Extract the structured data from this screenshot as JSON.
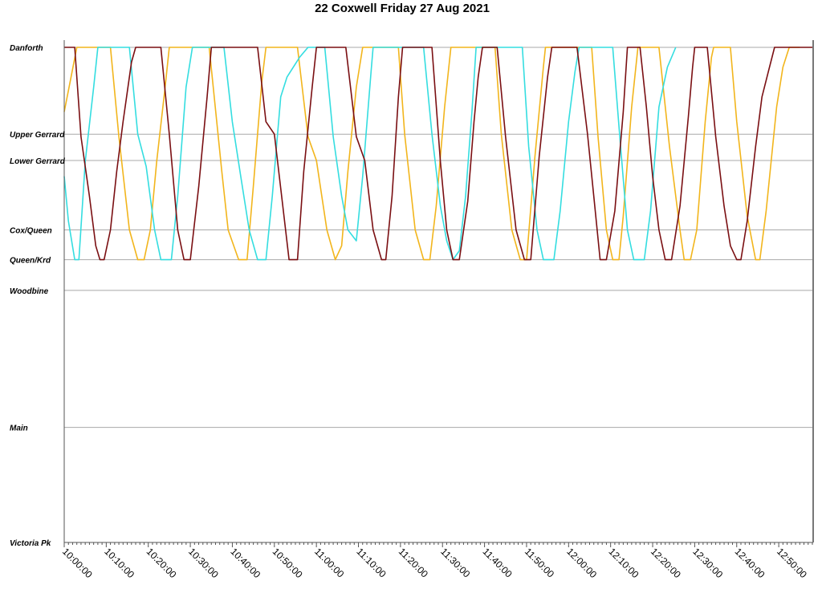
{
  "chart_data": {
    "type": "line",
    "title": "22 Coxwell Friday 27 Aug 2021",
    "xlabel": "",
    "ylabel": "",
    "grid": true,
    "legend": "none",
    "xlim": [
      "10:00:00",
      "12:58:00"
    ],
    "ylim": [
      "Victoria Pk",
      "Danforth"
    ],
    "stops": [
      {
        "name": "Danforth",
        "distance_km": 0.0
      },
      {
        "name": "Upper Gerrard",
        "distance_km": 1.75
      },
      {
        "name": "Lower Gerrard",
        "distance_km": 2.28
      },
      {
        "name": "Cox/Queen",
        "distance_km": 3.68
      },
      {
        "name": "Queen/Krd",
        "distance_km": 4.28
      },
      {
        "name": "Woodbine",
        "distance_km": 4.9
      },
      {
        "name": "Main",
        "distance_km": 7.66
      },
      {
        "name": "Victoria Pk",
        "distance_km": 9.98
      }
    ],
    "x_ticks": [
      "10:00:00",
      "10:10:00",
      "10:20:00",
      "10:30:00",
      "10:40:00",
      "10:50:00",
      "11:00:00",
      "11:10:00",
      "11:20:00",
      "11:30:00",
      "11:40:00",
      "11:50:00",
      "12:00:00",
      "12:10:00",
      "12:20:00",
      "12:30:00",
      "12:40:00",
      "12:50:00"
    ],
    "colors": [
      "#f2b51c",
      "#34dde0",
      "#7a0f12"
    ],
    "series": [
      {
        "color": "#f2b51c",
        "points": [
          [
            "10:00:00",
            1.3
          ],
          [
            "10:01:30",
            0.65
          ],
          [
            "10:03:00",
            0.0
          ],
          [
            "10:11:00",
            0.0
          ],
          [
            "10:13:00",
            1.8
          ],
          [
            "10:15:30",
            3.68
          ],
          [
            "10:17:30",
            4.28
          ],
          [
            "10:19:00",
            4.28
          ],
          [
            "10:20:30",
            3.68
          ],
          [
            "10:22:00",
            2.3
          ],
          [
            "10:24:00",
            0.8
          ],
          [
            "10:25:00",
            0.0
          ],
          [
            "10:34:30",
            0.0
          ],
          [
            "10:37:30",
            2.5
          ],
          [
            "10:39:00",
            3.68
          ],
          [
            "10:41:30",
            4.28
          ],
          [
            "10:43:30",
            4.28
          ],
          [
            "10:45:00",
            2.8
          ],
          [
            "10:47:00",
            0.7
          ],
          [
            "10:48:00",
            0.0
          ],
          [
            "10:55:30",
            0.0
          ],
          [
            "10:58:00",
            1.8
          ],
          [
            "11:00:00",
            2.28
          ],
          [
            "11:02:30",
            3.68
          ],
          [
            "11:04:30",
            4.28
          ],
          [
            "11:06:00",
            4.0
          ],
          [
            "11:07:30",
            2.5
          ],
          [
            "11:09:30",
            0.8
          ],
          [
            "11:11:00",
            0.0
          ],
          [
            "11:19:30",
            0.0
          ],
          [
            "11:21:00",
            1.75
          ],
          [
            "11:23:30",
            3.68
          ],
          [
            "11:25:30",
            4.28
          ],
          [
            "11:27:00",
            4.28
          ],
          [
            "11:28:30",
            3.2
          ],
          [
            "11:30:30",
            1.2
          ],
          [
            "11:32:00",
            0.0
          ],
          [
            "11:42:30",
            0.0
          ],
          [
            "11:44:00",
            1.75
          ],
          [
            "11:46:30",
            3.68
          ],
          [
            "11:48:30",
            4.28
          ],
          [
            "11:50:00",
            4.28
          ],
          [
            "11:52:00",
            2.2
          ],
          [
            "11:54:00",
            0.4
          ],
          [
            "11:54:30",
            0.0
          ],
          [
            "12:05:30",
            0.0
          ],
          [
            "12:07:00",
            1.8
          ],
          [
            "12:09:00",
            3.68
          ],
          [
            "12:10:30",
            4.28
          ],
          [
            "12:12:00",
            4.28
          ],
          [
            "12:13:00",
            3.4
          ],
          [
            "12:15:00",
            1.2
          ],
          [
            "12:16:30",
            0.0
          ],
          [
            "12:21:30",
            0.0
          ],
          [
            "12:24:00",
            2.0
          ],
          [
            "12:26:30",
            3.68
          ],
          [
            "12:27:30",
            4.28
          ],
          [
            "12:29:00",
            4.28
          ],
          [
            "12:30:30",
            3.68
          ],
          [
            "12:32:30",
            1.5
          ],
          [
            "12:34:00",
            0.2
          ],
          [
            "12:34:30",
            0.0
          ],
          [
            "12:38:30",
            0.0
          ],
          [
            "12:40:00",
            1.5
          ],
          [
            "12:42:30",
            3.4
          ],
          [
            "12:44:30",
            4.28
          ],
          [
            "12:45:30",
            4.28
          ],
          [
            "12:47:00",
            3.3
          ],
          [
            "12:49:30",
            1.2
          ],
          [
            "12:51:00",
            0.4
          ],
          [
            "12:52:30",
            0.0
          ],
          [
            "12:55:00",
            0.0
          ]
        ]
      },
      {
        "color": "#34dde0",
        "points": [
          [
            "10:00:00",
            2.6
          ],
          [
            "10:01:00",
            3.5
          ],
          [
            "10:02:30",
            4.28
          ],
          [
            "10:03:30",
            4.28
          ],
          [
            "10:05:00",
            2.3
          ],
          [
            "10:07:00",
            0.8
          ],
          [
            "10:08:00",
            0.0
          ],
          [
            "10:15:30",
            0.0
          ],
          [
            "10:17:30",
            1.75
          ],
          [
            "10:19:30",
            2.4
          ],
          [
            "10:21:30",
            3.68
          ],
          [
            "10:23:00",
            4.28
          ],
          [
            "10:25:30",
            4.28
          ],
          [
            "10:27:00",
            3.0
          ],
          [
            "10:29:00",
            0.8
          ],
          [
            "10:30:30",
            0.0
          ],
          [
            "10:38:00",
            0.0
          ],
          [
            "10:40:00",
            1.5
          ],
          [
            "10:42:00",
            2.6
          ],
          [
            "10:44:00",
            3.68
          ],
          [
            "10:46:00",
            4.28
          ],
          [
            "10:48:00",
            4.28
          ],
          [
            "10:49:30",
            3.0
          ],
          [
            "10:51:30",
            1.0
          ],
          [
            "10:53:00",
            0.6
          ],
          [
            "10:56:00",
            0.2
          ],
          [
            "10:58:00",
            0.0
          ],
          [
            "11:02:00",
            0.0
          ],
          [
            "11:04:00",
            1.8
          ],
          [
            "11:06:00",
            3.0
          ],
          [
            "11:07:30",
            3.68
          ],
          [
            "11:09:30",
            3.9
          ],
          [
            "11:11:00",
            2.6
          ],
          [
            "11:13:00",
            0.5
          ],
          [
            "11:13:30",
            0.0
          ],
          [
            "11:25:30",
            0.0
          ],
          [
            "11:27:30",
            1.75
          ],
          [
            "11:29:30",
            3.2
          ],
          [
            "11:31:00",
            3.9
          ],
          [
            "11:32:30",
            4.28
          ],
          [
            "11:34:00",
            4.1
          ],
          [
            "11:35:30",
            3.0
          ],
          [
            "11:37:00",
            1.3
          ],
          [
            "11:38:00",
            0.0
          ],
          [
            "11:49:00",
            0.0
          ],
          [
            "11:50:30",
            2.0
          ],
          [
            "11:52:30",
            3.68
          ],
          [
            "11:54:00",
            4.28
          ],
          [
            "11:56:30",
            4.28
          ],
          [
            "11:58:00",
            3.3
          ],
          [
            "12:00:00",
            1.5
          ],
          [
            "12:01:30",
            0.5
          ],
          [
            "12:02:30",
            0.0
          ],
          [
            "12:10:30",
            0.0
          ],
          [
            "12:12:00",
            1.6
          ],
          [
            "12:14:00",
            3.68
          ],
          [
            "12:15:30",
            4.28
          ],
          [
            "12:18:00",
            4.28
          ],
          [
            "12:19:30",
            3.3
          ],
          [
            "12:21:30",
            1.2
          ],
          [
            "12:23:30",
            0.4
          ],
          [
            "12:25:30",
            0.0
          ]
        ]
      },
      {
        "color": "#7a0f12",
        "points": [
          [
            "10:00:00",
            0.0
          ],
          [
            "10:02:30",
            0.0
          ],
          [
            "10:04:00",
            1.8
          ],
          [
            "10:06:00",
            3.0
          ],
          [
            "10:07:30",
            4.0
          ],
          [
            "10:08:30",
            4.28
          ],
          [
            "10:09:30",
            4.28
          ],
          [
            "10:11:00",
            3.68
          ],
          [
            "10:12:30",
            2.5
          ],
          [
            "10:14:00",
            1.5
          ],
          [
            "10:16:00",
            0.3
          ],
          [
            "10:17:00",
            0.0
          ],
          [
            "10:23:00",
            0.0
          ],
          [
            "10:25:00",
            1.75
          ],
          [
            "10:27:00",
            3.68
          ],
          [
            "10:28:30",
            4.28
          ],
          [
            "10:30:00",
            4.28
          ],
          [
            "10:32:00",
            2.8
          ],
          [
            "10:34:00",
            1.0
          ],
          [
            "10:35:00",
            0.0
          ],
          [
            "10:46:00",
            0.0
          ],
          [
            "10:48:00",
            1.5
          ],
          [
            "10:50:00",
            1.75
          ],
          [
            "10:52:00",
            3.2
          ],
          [
            "10:53:30",
            4.28
          ],
          [
            "10:55:30",
            4.28
          ],
          [
            "10:57:00",
            2.5
          ],
          [
            "10:59:00",
            0.8
          ],
          [
            "11:00:00",
            0.0
          ],
          [
            "11:07:00",
            0.0
          ],
          [
            "11:09:30",
            1.8
          ],
          [
            "11:11:30",
            2.28
          ],
          [
            "11:13:30",
            3.68
          ],
          [
            "11:15:30",
            4.28
          ],
          [
            "11:16:30",
            4.28
          ],
          [
            "11:18:00",
            3.0
          ],
          [
            "11:19:30",
            1.0
          ],
          [
            "11:20:30",
            0.0
          ],
          [
            "11:27:30",
            0.0
          ],
          [
            "11:29:30",
            2.3
          ],
          [
            "11:31:00",
            3.68
          ],
          [
            "11:32:30",
            4.28
          ],
          [
            "11:34:00",
            4.28
          ],
          [
            "11:36:00",
            3.1
          ],
          [
            "11:37:30",
            1.5
          ],
          [
            "11:38:30",
            0.6
          ],
          [
            "11:39:30",
            0.0
          ],
          [
            "11:43:00",
            0.0
          ],
          [
            "11:45:00",
            1.8
          ],
          [
            "11:47:30",
            3.68
          ],
          [
            "11:49:30",
            4.28
          ],
          [
            "11:51:00",
            4.28
          ],
          [
            "11:53:00",
            2.2
          ],
          [
            "11:55:00",
            0.6
          ],
          [
            "11:56:00",
            0.0
          ],
          [
            "12:02:00",
            0.0
          ],
          [
            "12:04:30",
            1.75
          ],
          [
            "12:06:00",
            3.0
          ],
          [
            "12:07:30",
            4.28
          ],
          [
            "12:09:00",
            4.28
          ],
          [
            "12:11:00",
            3.3
          ],
          [
            "12:13:00",
            1.3
          ],
          [
            "12:14:00",
            0.0
          ],
          [
            "12:17:00",
            0.0
          ],
          [
            "12:18:30",
            1.2
          ],
          [
            "12:20:00",
            2.6
          ],
          [
            "12:21:30",
            3.68
          ],
          [
            "12:23:00",
            4.28
          ],
          [
            "12:24:30",
            4.28
          ],
          [
            "12:26:30",
            3.2
          ],
          [
            "12:28:30",
            1.4
          ],
          [
            "12:29:30",
            0.4
          ],
          [
            "12:30:00",
            0.0
          ],
          [
            "12:33:00",
            0.0
          ],
          [
            "12:35:00",
            1.8
          ],
          [
            "12:37:00",
            3.2
          ],
          [
            "12:38:30",
            4.0
          ],
          [
            "12:40:00",
            4.28
          ],
          [
            "12:41:00",
            4.28
          ],
          [
            "12:42:30",
            3.5
          ],
          [
            "12:44:30",
            2.0
          ],
          [
            "12:46:00",
            1.0
          ],
          [
            "12:47:30",
            0.5
          ],
          [
            "12:49:00",
            0.0
          ],
          [
            "12:52:00",
            0.0
          ],
          [
            "12:55:00",
            0.0
          ],
          [
            "12:58:00",
            0.0
          ]
        ]
      }
    ]
  }
}
